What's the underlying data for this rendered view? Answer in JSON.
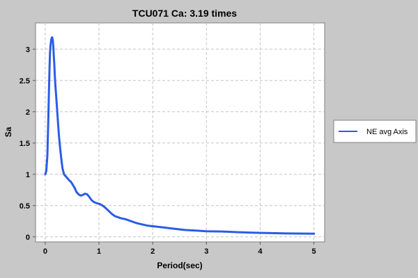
{
  "chart_data": {
    "type": "line",
    "title": "TCU071 Ca: 3.19 times",
    "xlabel": "Period(sec)",
    "ylabel": "Sa",
    "xlim": [
      -0.18,
      5.2
    ],
    "ylim": [
      -0.08,
      3.42
    ],
    "x_ticks": [
      "0",
      "1",
      "2",
      "3",
      "4",
      "5"
    ],
    "x_tick_values": [
      0,
      1,
      2,
      3,
      4,
      5
    ],
    "y_ticks": [
      "0",
      "0.5",
      "1",
      "1.5",
      "2",
      "2.5",
      "3"
    ],
    "y_tick_values": [
      0,
      0.5,
      1,
      1.5,
      2,
      2.5,
      3
    ],
    "grid": true,
    "legend_position": "right",
    "colors": {
      "series": "#2b5ce6",
      "plot_bg": "#ffffff",
      "grid": "#c4c4c4"
    },
    "series": [
      {
        "name": "NE avg Axis",
        "x": [
          0.0,
          0.02,
          0.04,
          0.05,
          0.06,
          0.07,
          0.08,
          0.09,
          0.1,
          0.11,
          0.12,
          0.13,
          0.14,
          0.15,
          0.16,
          0.17,
          0.18,
          0.19,
          0.2,
          0.22,
          0.24,
          0.26,
          0.28,
          0.3,
          0.32,
          0.35,
          0.38,
          0.4,
          0.42,
          0.45,
          0.48,
          0.5,
          0.55,
          0.58,
          0.62,
          0.66,
          0.7,
          0.74,
          0.78,
          0.82,
          0.86,
          0.9,
          0.95,
          1.0,
          1.05,
          1.1,
          1.15,
          1.2,
          1.25,
          1.3,
          1.4,
          1.5,
          1.6,
          1.7,
          1.8,
          1.9,
          2.0,
          2.2,
          2.4,
          2.6,
          2.8,
          3.0,
          3.3,
          3.6,
          3.9,
          4.2,
          4.5,
          5.0
        ],
        "y": [
          1.0,
          1.05,
          1.3,
          1.6,
          1.95,
          2.35,
          2.7,
          2.95,
          3.07,
          3.14,
          3.18,
          3.19,
          3.15,
          3.05,
          2.9,
          2.75,
          2.55,
          2.42,
          2.3,
          2.05,
          1.8,
          1.58,
          1.4,
          1.25,
          1.1,
          1.0,
          0.97,
          0.95,
          0.93,
          0.9,
          0.88,
          0.85,
          0.78,
          0.72,
          0.68,
          0.66,
          0.67,
          0.69,
          0.68,
          0.64,
          0.59,
          0.56,
          0.54,
          0.53,
          0.51,
          0.48,
          0.44,
          0.4,
          0.36,
          0.33,
          0.3,
          0.28,
          0.25,
          0.22,
          0.2,
          0.18,
          0.17,
          0.15,
          0.13,
          0.11,
          0.1,
          0.09,
          0.085,
          0.075,
          0.065,
          0.06,
          0.055,
          0.05
        ]
      }
    ]
  }
}
